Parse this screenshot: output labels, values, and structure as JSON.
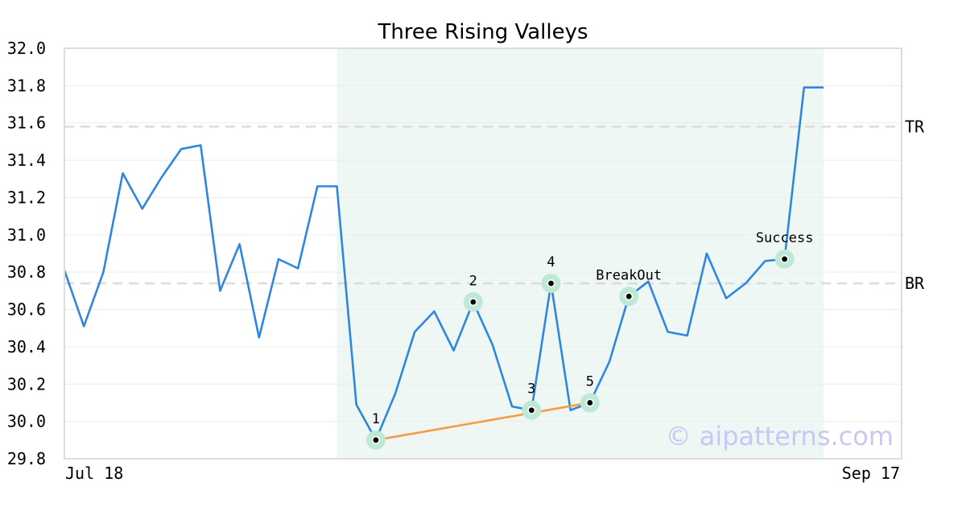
{
  "chart_data": {
    "type": "line",
    "title": "Three Rising Valleys",
    "watermark": "© aipatterns.com",
    "x_start_label": "Jul 18",
    "x_end_label": "Sep 17",
    "ylim": [
      29.8,
      32.0
    ],
    "yticks": [
      "29.8",
      "30.0",
      "30.2",
      "30.4",
      "30.6",
      "30.8",
      "31.0",
      "31.2",
      "31.4",
      "31.6",
      "31.8",
      "32.0"
    ],
    "grid": true,
    "series": [
      {
        "color": "#2e86de",
        "values": [
          30.81,
          30.51,
          30.8,
          31.33,
          31.14,
          31.31,
          31.46,
          31.48,
          30.7,
          30.95,
          30.45,
          30.87,
          30.82,
          31.26,
          31.26,
          30.09,
          29.9,
          30.15,
          30.48,
          30.59,
          30.38,
          30.64,
          30.41,
          30.08,
          30.06,
          30.74,
          30.06,
          30.1,
          30.32,
          30.67,
          30.75,
          30.48,
          30.46,
          30.9,
          30.66,
          30.74,
          30.86,
          30.87,
          31.79,
          31.79
        ]
      }
    ],
    "highlight_range": [
      14,
      39
    ],
    "highlight_color": "#eef7f3",
    "reference_lines": [
      {
        "label": "TR",
        "value": 31.58
      },
      {
        "label": "BR",
        "value": 30.74
      }
    ],
    "trend_line": {
      "from_index": 16,
      "to_index": 27,
      "from_value": 29.9,
      "to_value": 30.1,
      "color": "#f59c42"
    },
    "points": [
      {
        "label": "1",
        "index": 16,
        "value": 29.9
      },
      {
        "label": "2",
        "index": 21,
        "value": 30.64
      },
      {
        "label": "3",
        "index": 24,
        "value": 30.06
      },
      {
        "label": "4",
        "index": 25,
        "value": 30.74
      },
      {
        "label": "5",
        "index": 27,
        "value": 30.1
      },
      {
        "label": "BreakOut",
        "index": 29,
        "value": 30.67
      },
      {
        "label": "Success",
        "index": 37,
        "value": 30.87
      }
    ]
  }
}
